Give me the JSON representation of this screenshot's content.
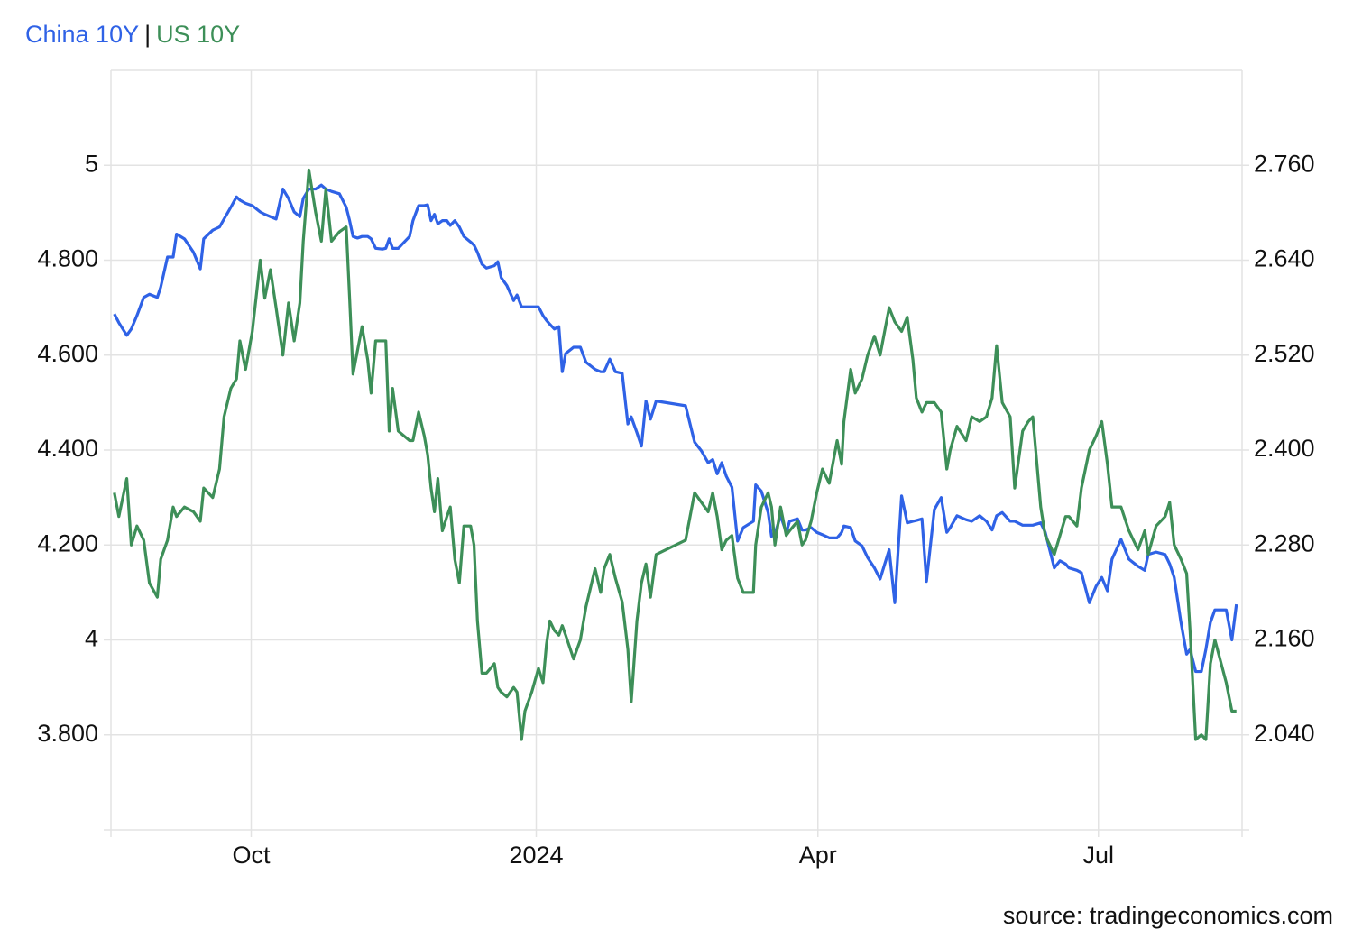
{
  "chart_data": {
    "type": "line",
    "legend_separator": "|",
    "source": "source: tradingeconomics.com",
    "xlim": [
      2023.624,
      2024.624
    ],
    "xticks": [
      {
        "value": 2023.748,
        "label": "Oct"
      },
      2024,
      {
        "value": 2024.249,
        "label": "Apr"
      },
      {
        "value": 2024.497,
        "label": "Jul"
      }
    ],
    "ylim": [
      3.6,
      5.2
    ],
    "yticks": [
      5,
      {
        "value": 4.8,
        "label": "4.800"
      },
      {
        "value": 4.6,
        "label": "4.600"
      },
      {
        "value": 4.4,
        "label": "4.400"
      },
      {
        "value": 4.2,
        "label": "4.200"
      },
      4,
      {
        "value": 3.8,
        "label": "3.800"
      }
    ],
    "y2lim": [
      1.92,
      2.88
    ],
    "y2ticks": [
      {
        "value": 2.76,
        "label": "2.760"
      },
      {
        "value": 2.64,
        "label": "2.640"
      },
      {
        "value": 2.52,
        "label": "2.520"
      },
      {
        "value": 2.4,
        "label": "2.400"
      },
      {
        "value": 2.28,
        "label": "2.280"
      },
      {
        "value": 2.16,
        "label": "2.160"
      },
      {
        "value": 2.04,
        "label": "2.040"
      }
    ],
    "grid": true,
    "x": [
      2023.627,
      2023.631,
      2023.638,
      2023.642,
      2023.647,
      2023.653,
      2023.658,
      2023.665,
      2023.668,
      2023.674,
      2023.679,
      2023.682,
      2023.689,
      2023.697,
      2023.703,
      2023.706,
      2023.714,
      2023.72,
      2023.724,
      2023.73,
      2023.735,
      2023.738,
      2023.743,
      2023.749,
      2023.756,
      2023.76,
      2023.765,
      2023.77,
      2023.776,
      2023.781,
      2023.786,
      2023.791,
      2023.794,
      2023.799,
      2023.805,
      2023.81,
      2023.814,
      2023.819,
      2023.826,
      2023.832,
      2023.835,
      2023.838,
      2023.842,
      2023.846,
      2023.851,
      2023.854,
      2023.858,
      2023.864,
      2023.867,
      2023.87,
      2023.873,
      2023.878,
      2023.888,
      2023.891,
      2023.896,
      2023.901,
      2023.904,
      2023.907,
      2023.91,
      2023.913,
      2023.917,
      2023.921,
      2023.924,
      2023.928,
      2023.932,
      2023.936,
      2023.942,
      2023.945,
      2023.948,
      2023.952,
      2023.956,
      2023.963,
      2023.966,
      2023.969,
      2023.974,
      2023.98,
      2023.983,
      2023.987,
      2023.99,
      2023.996,
      2024.002,
      2024.006,
      2024.009,
      2024.012,
      2024.016,
      2024.02,
      2024.023,
      2024.026,
      2024.033,
      2024.039,
      2024.044,
      2024.052,
      2024.057,
      2024.06,
      2024.065,
      2024.07,
      2024.076,
      2024.081,
      2024.084,
      2024.089,
      2024.093,
      2024.097,
      2024.101,
      2024.106,
      2024.132,
      2024.14,
      2024.146,
      2024.152,
      2024.156,
      2024.16,
      2024.164,
      2024.168,
      2024.173,
      2024.178,
      2024.183,
      2024.192,
      2024.194,
      2024.199,
      2024.205,
      2024.208,
      2024.211,
      2024.216,
      2024.221,
      2024.224,
      2024.231,
      2024.235,
      2024.238,
      2024.243,
      2024.248,
      2024.253,
      2024.259,
      2024.266,
      2024.27,
      2024.272,
      2024.278,
      2024.282,
      2024.288,
      2024.293,
      2024.299,
      2024.304,
      2024.312,
      2024.317,
      2024.323,
      2024.328,
      2024.333,
      2024.336,
      2024.341,
      2024.345,
      2024.352,
      2024.358,
      2024.363,
      2024.366,
      2024.372,
      2024.38,
      2024.385,
      2024.392,
      2024.398,
      2024.403,
      2024.407,
      2024.412,
      2024.419,
      2024.423,
      2024.43,
      2024.435,
      2024.439,
      2024.446,
      2024.45,
      2024.458,
      2024.463,
      2024.468,
      2024.471,
      2024.478,
      2024.482,
      2024.489,
      2024.495,
      2024.5,
      2024.505,
      2024.509,
      2024.517,
      2024.524,
      2024.532,
      2024.538,
      2024.541,
      2024.548,
      2024.556,
      2024.56,
      2024.564,
      2024.57,
      2024.575,
      2024.578,
      2024.583,
      2024.588,
      2024.592,
      2024.596,
      2024.6,
      2024.61,
      2024.615,
      2024.619
    ],
    "series": [
      {
        "name": "China 10Y",
        "color": "#2f62e6",
        "axis": "y2",
        "values": [
          2.572,
          2.561,
          2.545,
          2.553,
          2.57,
          2.593,
          2.597,
          2.593,
          2.606,
          2.644,
          2.644,
          2.673,
          2.667,
          2.65,
          2.629,
          2.667,
          2.678,
          2.682,
          2.692,
          2.707,
          2.72,
          2.716,
          2.712,
          2.709,
          2.701,
          2.698,
          2.695,
          2.692,
          2.73,
          2.718,
          2.701,
          2.695,
          2.718,
          2.73,
          2.73,
          2.735,
          2.73,
          2.727,
          2.724,
          2.707,
          2.69,
          2.67,
          2.668,
          2.67,
          2.67,
          2.667,
          2.655,
          2.654,
          2.655,
          2.667,
          2.655,
          2.655,
          2.67,
          2.69,
          2.709,
          2.709,
          2.71,
          2.69,
          2.698,
          2.686,
          2.69,
          2.69,
          2.684,
          2.69,
          2.682,
          2.67,
          2.663,
          2.659,
          2.65,
          2.635,
          2.63,
          2.633,
          2.638,
          2.618,
          2.608,
          2.589,
          2.596,
          2.581,
          2.581,
          2.581,
          2.581,
          2.57,
          2.564,
          2.559,
          2.553,
          2.556,
          2.499,
          2.522,
          2.53,
          2.53,
          2.511,
          2.502,
          2.499,
          2.499,
          2.515,
          2.499,
          2.497,
          2.433,
          2.442,
          2.422,
          2.405,
          2.462,
          2.439,
          2.462,
          2.456,
          2.41,
          2.399,
          2.384,
          2.388,
          2.37,
          2.384,
          2.367,
          2.353,
          2.285,
          2.302,
          2.31,
          2.356,
          2.348,
          2.321,
          2.291,
          2.294,
          2.317,
          2.296,
          2.31,
          2.313,
          2.299,
          2.299,
          2.302,
          2.296,
          2.293,
          2.289,
          2.289,
          2.296,
          2.304,
          2.302,
          2.285,
          2.279,
          2.264,
          2.251,
          2.237,
          2.274,
          2.207,
          2.342,
          2.308,
          2.31,
          2.311,
          2.313,
          2.234,
          2.325,
          2.34,
          2.296,
          2.302,
          2.317,
          2.312,
          2.31,
          2.317,
          2.31,
          2.299,
          2.317,
          2.321,
          2.31,
          2.31,
          2.305,
          2.305,
          2.305,
          2.308,
          2.296,
          2.251,
          2.26,
          2.256,
          2.251,
          2.248,
          2.245,
          2.207,
          2.228,
          2.239,
          2.222,
          2.262,
          2.287,
          2.262,
          2.253,
          2.248,
          2.268,
          2.271,
          2.268,
          2.256,
          2.239,
          2.182,
          2.142,
          2.148,
          2.12,
          2.12,
          2.148,
          2.182,
          2.198,
          2.198,
          2.16,
          2.205
        ]
      },
      {
        "name": "US 10Y",
        "color": "#3d8f58",
        "axis": "y",
        "values": [
          4.31,
          4.26,
          4.34,
          4.2,
          4.24,
          4.21,
          4.12,
          4.09,
          4.17,
          4.21,
          4.28,
          4.26,
          4.28,
          4.27,
          4.25,
          4.32,
          4.3,
          4.36,
          4.47,
          4.53,
          4.55,
          4.63,
          4.57,
          4.65,
          4.8,
          4.72,
          4.78,
          4.7,
          4.6,
          4.71,
          4.63,
          4.71,
          4.84,
          4.99,
          4.9,
          4.84,
          4.95,
          4.84,
          4.86,
          4.87,
          4.72,
          4.56,
          4.61,
          4.66,
          4.59,
          4.52,
          4.63,
          4.63,
          4.63,
          4.44,
          4.53,
          4.44,
          4.42,
          4.42,
          4.48,
          4.43,
          4.39,
          4.32,
          4.27,
          4.34,
          4.23,
          4.26,
          4.28,
          4.17,
          4.12,
          4.24,
          4.24,
          4.2,
          4.04,
          3.93,
          3.93,
          3.95,
          3.9,
          3.89,
          3.88,
          3.9,
          3.89,
          3.79,
          3.85,
          3.89,
          3.94,
          3.91,
          3.99,
          4.04,
          4.02,
          4.01,
          4.03,
          4.01,
          3.96,
          4.0,
          4.07,
          4.15,
          4.1,
          4.15,
          4.18,
          4.13,
          4.08,
          3.98,
          3.87,
          4.04,
          4.12,
          4.16,
          4.09,
          4.18,
          4.21,
          4.31,
          4.29,
          4.27,
          4.31,
          4.26,
          4.19,
          4.21,
          4.22,
          4.13,
          4.1,
          4.1,
          4.2,
          4.28,
          4.31,
          4.28,
          4.2,
          4.28,
          4.22,
          4.23,
          4.25,
          4.2,
          4.21,
          4.25,
          4.31,
          4.36,
          4.33,
          4.42,
          4.37,
          4.46,
          4.57,
          4.52,
          4.55,
          4.6,
          4.64,
          4.6,
          4.7,
          4.67,
          4.65,
          4.68,
          4.59,
          4.51,
          4.48,
          4.5,
          4.5,
          4.48,
          4.36,
          4.4,
          4.45,
          4.42,
          4.47,
          4.46,
          4.47,
          4.51,
          4.62,
          4.5,
          4.47,
          4.32,
          4.44,
          4.46,
          4.47,
          4.28,
          4.22,
          4.18,
          4.22,
          4.26,
          4.26,
          4.24,
          4.32,
          4.4,
          4.43,
          4.46,
          4.37,
          4.28,
          4.28,
          4.23,
          4.19,
          4.23,
          4.18,
          4.24,
          4.26,
          4.29,
          4.2,
          4.17,
          4.14,
          4.02,
          3.79,
          3.8,
          3.79,
          3.95,
          4.0,
          3.91,
          3.85,
          3.85
        ]
      }
    ]
  }
}
